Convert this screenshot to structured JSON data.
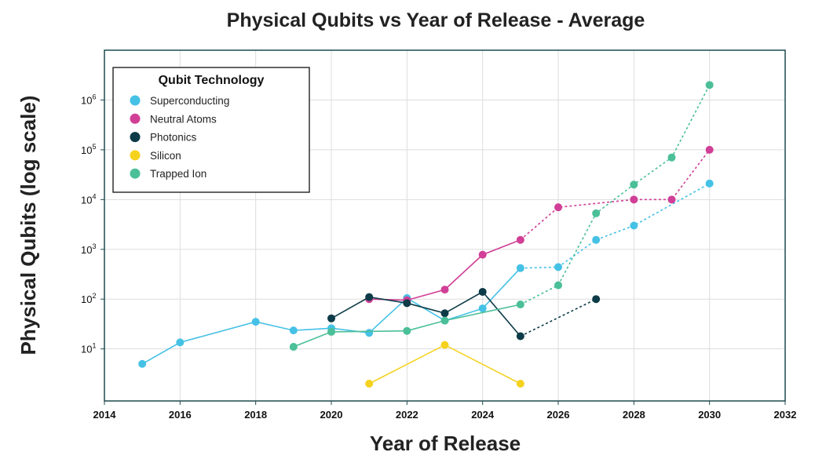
{
  "chart_data": {
    "type": "line",
    "title": "Physical Qubits vs Year of Release - Average",
    "xlabel": "Year of Release",
    "ylabel": "Physical Qubits (log scale)",
    "xlim": [
      2014,
      2032
    ],
    "x_ticks": [
      2014,
      2016,
      2018,
      2020,
      2022,
      2024,
      2026,
      2028,
      2030,
      2032
    ],
    "y_scale": "log",
    "ylim": [
      0.9,
      10000000
    ],
    "y_ticks": [
      {
        "value": 10,
        "base": "10",
        "exp": "1"
      },
      {
        "value": 100,
        "base": "10",
        "exp": "2"
      },
      {
        "value": 1000,
        "base": "10",
        "exp": "3"
      },
      {
        "value": 10000,
        "base": "10",
        "exp": "4"
      },
      {
        "value": 100000,
        "base": "10",
        "exp": "5"
      },
      {
        "value": 1000000,
        "base": "10",
        "exp": "6"
      }
    ],
    "grid": true,
    "legend": {
      "title": "Qubit Technology",
      "position": "top-left"
    },
    "series": [
      {
        "name": "Superconducting",
        "color": "#45c1e6",
        "solid": [
          [
            2015,
            5
          ],
          [
            2016,
            13.5
          ],
          [
            2018,
            35
          ],
          [
            2019,
            23.5
          ],
          [
            2020,
            26
          ],
          [
            2021,
            21
          ],
          [
            2022,
            105
          ],
          [
            2023,
            37
          ],
          [
            2024,
            65
          ],
          [
            2025,
            420
          ]
        ],
        "projected": [
          [
            2025,
            420
          ],
          [
            2026,
            440
          ],
          [
            2027,
            1550
          ],
          [
            2028,
            3000
          ],
          [
            2030,
            21000
          ]
        ]
      },
      {
        "name": "Neutral Atoms",
        "color": "#d13f96",
        "solid": [
          [
            2021,
            100
          ],
          [
            2022,
            95
          ],
          [
            2023,
            155
          ],
          [
            2024,
            780
          ],
          [
            2025,
            1550
          ]
        ],
        "projected": [
          [
            2025,
            1550
          ],
          [
            2026,
            7000
          ],
          [
            2028,
            10000
          ],
          [
            2029,
            10000
          ],
          [
            2030,
            100000
          ]
        ]
      },
      {
        "name": "Photonics",
        "color": "#0d3b47",
        "solid": [
          [
            2020,
            41
          ],
          [
            2021,
            110
          ],
          [
            2022,
            83
          ],
          [
            2023,
            52
          ],
          [
            2024,
            140
          ],
          [
            2025,
            18
          ]
        ],
        "projected": [
          [
            2025,
            18
          ],
          [
            2027,
            100
          ]
        ]
      },
      {
        "name": "Silicon",
        "color": "#f5d21e",
        "solid": [
          [
            2021,
            2
          ],
          [
            2023,
            12
          ],
          [
            2025,
            2
          ]
        ],
        "projected": []
      },
      {
        "name": "Trapped Ion",
        "color": "#4bbf98",
        "solid": [
          [
            2019,
            11
          ],
          [
            2020,
            22
          ],
          [
            2022,
            23
          ],
          [
            2023,
            37
          ],
          [
            2025,
            78
          ]
        ],
        "projected": [
          [
            2025,
            78
          ],
          [
            2026,
            190
          ],
          [
            2027,
            5300
          ],
          [
            2028,
            20000
          ],
          [
            2029,
            70000
          ],
          [
            2030,
            2000000
          ]
        ]
      }
    ]
  }
}
